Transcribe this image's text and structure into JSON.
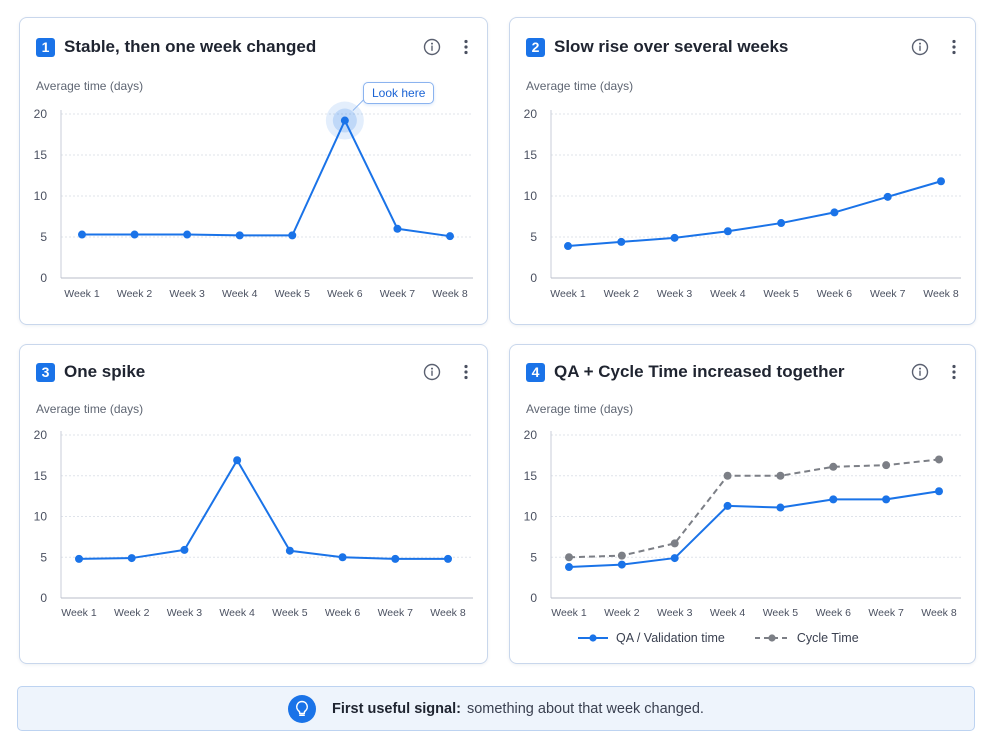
{
  "chart_data": [
    {
      "type": "line",
      "number": "1",
      "title": "Stable, then one week changed",
      "ylabel": "Average time (days)",
      "categories": [
        "Week 1",
        "Week 2",
        "Week 3",
        "Week 4",
        "Week 5",
        "Week 6",
        "Week 7",
        "Week 8"
      ],
      "series": [
        {
          "values": [
            5.3,
            5.3,
            5.3,
            5.2,
            5.2,
            19.2,
            6.0,
            5.1
          ],
          "color": "#1a73e8",
          "dash": false
        }
      ],
      "ylim": [
        0,
        20
      ],
      "yticks": [
        0,
        5,
        10,
        15,
        20
      ],
      "grid": true,
      "annotation": {
        "text": "Look here",
        "index": 5
      }
    },
    {
      "type": "line",
      "number": "2",
      "title": "Slow rise over several weeks",
      "ylabel": "Average time (days)",
      "categories": [
        "Week 1",
        "Week 2",
        "Week 3",
        "Week 4",
        "Week 5",
        "Week 6",
        "Week 7",
        "Week 8"
      ],
      "series": [
        {
          "values": [
            3.9,
            4.4,
            4.9,
            5.7,
            6.7,
            8.0,
            9.9,
            11.8
          ],
          "color": "#1a73e8",
          "dash": false
        }
      ],
      "ylim": [
        0,
        20
      ],
      "yticks": [
        0,
        5,
        10,
        15,
        20
      ],
      "grid": true
    },
    {
      "type": "line",
      "number": "3",
      "title": "One spike",
      "ylabel": "Average time (days)",
      "categories": [
        "Week 1",
        "Week 2",
        "Week 3",
        "Week 4",
        "Week 5",
        "Week 6",
        "Week 7",
        "Week 8"
      ],
      "series": [
        {
          "values": [
            4.8,
            4.9,
            5.9,
            16.9,
            5.8,
            5.0,
            4.8,
            4.8
          ],
          "color": "#1a73e8",
          "dash": false
        }
      ],
      "ylim": [
        0,
        20
      ],
      "yticks": [
        0,
        5,
        10,
        15,
        20
      ],
      "grid": true
    },
    {
      "type": "line",
      "number": "4",
      "title": "QA + Cycle Time increased together",
      "ylabel": "Average time (days)",
      "categories": [
        "Week 1",
        "Week 2",
        "Week 3",
        "Week 4",
        "Week 5",
        "Week 6",
        "Week 7",
        "Week 8"
      ],
      "series": [
        {
          "name": "QA / Validation time",
          "values": [
            3.8,
            4.1,
            4.9,
            11.3,
            11.1,
            12.1,
            12.1,
            13.1
          ],
          "color": "#1a73e8",
          "dash": false
        },
        {
          "name": "Cycle Time",
          "values": [
            5.0,
            5.2,
            6.7,
            15.0,
            15.0,
            16.1,
            16.3,
            17.0
          ],
          "color": "#7c7f86",
          "dash": true
        }
      ],
      "ylim": [
        0,
        20
      ],
      "yticks": [
        0,
        5,
        10,
        15,
        20
      ],
      "grid": true,
      "legend": "bottom"
    }
  ],
  "banner": {
    "bold": "First useful signal:",
    "text": "something about that week changed.",
    "icon": "lightbulb-icon"
  }
}
